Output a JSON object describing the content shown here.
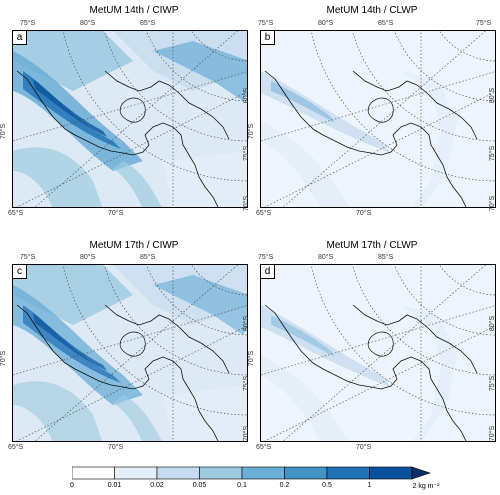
{
  "panels": [
    {
      "title": "MetUM 14th / CIWP",
      "letter": "a",
      "field": "ciwp",
      "intensity": 1.0
    },
    {
      "title": "MetUM 14th / CLWP",
      "letter": "b",
      "field": "clwp",
      "intensity": 0.35
    },
    {
      "title": "MetUM 17th / CIWP",
      "letter": "c",
      "field": "ciwp",
      "intensity": 0.9
    },
    {
      "title": "MetUM 17th / CLWP",
      "letter": "d",
      "field": "clwp",
      "intensity": 0.3
    }
  ],
  "top_lat_labels": [
    "75°S",
    "80°S",
    "85°S",
    "85°S",
    "75°S"
  ],
  "left_labels": [
    "70°S"
  ],
  "right_labels": [
    "80°S",
    "75°S",
    "70°S"
  ],
  "bottom_labels": [
    "65°S",
    "70°S"
  ],
  "colorbar": {
    "levels": [
      "0",
      "0.01",
      "0.02",
      "0.05",
      "0.1",
      "0.2",
      "0.5",
      "1",
      "2 kg m⁻²"
    ],
    "colors": [
      "#ffffff",
      "#e3eef8",
      "#c6dbef",
      "#9ecae1",
      "#6baed6",
      "#4292c6",
      "#2171b5",
      "#08519c"
    ],
    "extend_color": "#08306b"
  }
}
